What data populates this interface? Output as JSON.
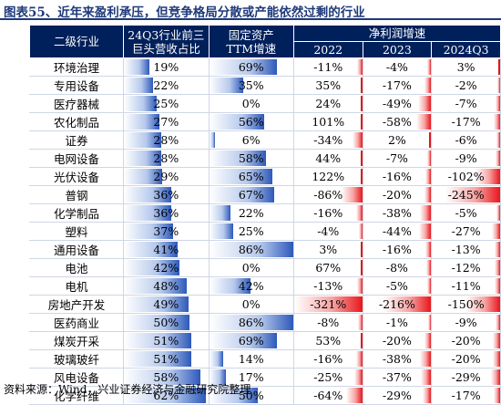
{
  "title": "图表55、近年来盈利承压，但竞争格局分散或产能依然过剩的行业",
  "header": {
    "industry": "二级行业",
    "concentration_line1": "24Q3行业前三",
    "concentration_line2": "巨头营收占比",
    "capex_line1": "固定资产",
    "capex_line2": "TTM增速",
    "profit_group": "净利润增速",
    "years": [
      "2022",
      "2023",
      "2024Q3"
    ]
  },
  "rows": [
    {
      "industry": "环境治理",
      "share": "19%",
      "share_v": 19,
      "capex": "69%",
      "capex_v": 69,
      "p2022": "-11%",
      "p2022_v": -11,
      "p2023": "-4%",
      "p2023_v": -4,
      "p2024": "3%",
      "p2024_v": 3
    },
    {
      "industry": "专用设备",
      "share": "22%",
      "share_v": 22,
      "capex": "35%",
      "capex_v": 35,
      "p2022": "35%",
      "p2022_v": 35,
      "p2023": "-17%",
      "p2023_v": -17,
      "p2024": "-2%",
      "p2024_v": -2
    },
    {
      "industry": "医疗器械",
      "share": "25%",
      "share_v": 25,
      "capex": "0%",
      "capex_v": 0,
      "p2022": "24%",
      "p2022_v": 24,
      "p2023": "-49%",
      "p2023_v": -49,
      "p2024": "-7%",
      "p2024_v": -7
    },
    {
      "industry": "农化制品",
      "share": "27%",
      "share_v": 27,
      "capex": "56%",
      "capex_v": 56,
      "p2022": "101%",
      "p2022_v": 101,
      "p2023": "-58%",
      "p2023_v": -58,
      "p2024": "-17%",
      "p2024_v": -17
    },
    {
      "industry": "证券",
      "share": "28%",
      "share_v": 28,
      "capex": "6%",
      "capex_v": 6,
      "p2022": "-34%",
      "p2022_v": -34,
      "p2023": "2%",
      "p2023_v": 2,
      "p2024": "-6%",
      "p2024_v": -6
    },
    {
      "industry": "电网设备",
      "share": "28%",
      "share_v": 28,
      "capex": "58%",
      "capex_v": 58,
      "p2022": "44%",
      "p2022_v": 44,
      "p2023": "-7%",
      "p2023_v": -7,
      "p2024": "-9%",
      "p2024_v": -9
    },
    {
      "industry": "光伏设备",
      "share": "29%",
      "share_v": 29,
      "capex": "65%",
      "capex_v": 65,
      "p2022": "122%",
      "p2022_v": 122,
      "p2023": "-16%",
      "p2023_v": -16,
      "p2024": "-102%",
      "p2024_v": -102
    },
    {
      "industry": "普钢",
      "share": "36%",
      "share_v": 36,
      "capex": "67%",
      "capex_v": 67,
      "p2022": "-86%",
      "p2022_v": -86,
      "p2023": "-20%",
      "p2023_v": -20,
      "p2024": "-245%",
      "p2024_v": -245
    },
    {
      "industry": "化学制品",
      "share": "36%",
      "share_v": 36,
      "capex": "22%",
      "capex_v": 22,
      "p2022": "-16%",
      "p2022_v": -16,
      "p2023": "-38%",
      "p2023_v": -38,
      "p2024": "-5%",
      "p2024_v": -5
    },
    {
      "industry": "塑料",
      "share": "37%",
      "share_v": 37,
      "capex": "25%",
      "capex_v": 25,
      "p2022": "-4%",
      "p2022_v": -4,
      "p2023": "-44%",
      "p2023_v": -44,
      "p2024": "-27%",
      "p2024_v": -27
    },
    {
      "industry": "通用设备",
      "share": "41%",
      "share_v": 41,
      "capex": "86%",
      "capex_v": 86,
      "p2022": "3%",
      "p2022_v": 3,
      "p2023": "-16%",
      "p2023_v": -16,
      "p2024": "-13%",
      "p2024_v": -13
    },
    {
      "industry": "电池",
      "share": "42%",
      "share_v": 42,
      "capex": "0%",
      "capex_v": 0,
      "p2022": "67%",
      "p2022_v": 67,
      "p2023": "-8%",
      "p2023_v": -8,
      "p2024": "-12%",
      "p2024_v": -12
    },
    {
      "industry": "电机",
      "share": "48%",
      "share_v": 48,
      "capex": "42%",
      "capex_v": 42,
      "p2022": "-13%",
      "p2022_v": -13,
      "p2023": "-5%",
      "p2023_v": -5,
      "p2024": "-11%",
      "p2024_v": -11
    },
    {
      "industry": "房地产开发",
      "share": "49%",
      "share_v": 49,
      "capex": "0%",
      "capex_v": 0,
      "p2022": "-321%",
      "p2022_v": -321,
      "p2023": "-216%",
      "p2023_v": -216,
      "p2024": "-150%",
      "p2024_v": -150
    },
    {
      "industry": "医药商业",
      "share": "50%",
      "share_v": 50,
      "capex": "86%",
      "capex_v": 86,
      "p2022": "-8%",
      "p2022_v": -8,
      "p2023": "-1%",
      "p2023_v": -1,
      "p2024": "-9%",
      "p2024_v": -9
    },
    {
      "industry": "煤炭开采",
      "share": "51%",
      "share_v": 51,
      "capex": "69%",
      "capex_v": 69,
      "p2022": "53%",
      "p2022_v": 53,
      "p2023": "-20%",
      "p2023_v": -20,
      "p2024": "-20%",
      "p2024_v": -20
    },
    {
      "industry": "玻璃玻纤",
      "share": "51%",
      "share_v": 51,
      "capex": "14%",
      "capex_v": 14,
      "p2022": "-16%",
      "p2022_v": -16,
      "p2023": "-38%",
      "p2023_v": -38,
      "p2024": "-20%",
      "p2024_v": -20
    },
    {
      "industry": "风电设备",
      "share": "58%",
      "share_v": 58,
      "capex": "17%",
      "capex_v": 17,
      "p2022": "-25%",
      "p2022_v": -25,
      "p2023": "-37%",
      "p2023_v": -37,
      "p2024": "-29%",
      "p2024_v": -29
    },
    {
      "industry": "化学纤维",
      "share": "62%",
      "share_v": 62,
      "capex": "50%",
      "capex_v": 50,
      "p2022": "-64%",
      "p2022_v": -64,
      "p2023": "-29%",
      "p2023_v": -29,
      "p2024": "-17%",
      "p2024_v": -17
    }
  ],
  "source": "资料来源：Wind，兴业证券经济与金融研究院整理",
  "colors": {
    "header_bg": "#00205b",
    "title": "#1f3a7a",
    "bar_blue": "#2d59ba",
    "bar_red": "#e8161b"
  }
}
